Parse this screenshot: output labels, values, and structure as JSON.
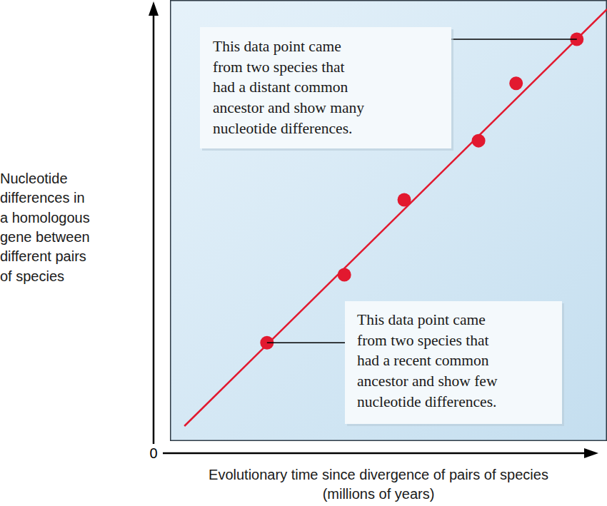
{
  "chart_data": {
    "type": "scatter",
    "x_label": "Evolutionary time since divergence of pairs of species\n(millions of years)",
    "y_label": "Nucleotide\ndifferences in\na homologous\ngene between\ndifferent pairs\nof species",
    "xlim": [
      0,
      100
    ],
    "ylim": [
      0,
      100
    ],
    "xticks": [],
    "yticks": [
      0
    ],
    "tick_labels": "y",
    "grid": false,
    "series": [
      {
        "type": "scatter",
        "color": "#e2192f",
        "marker": "circle",
        "x": [
          22.2,
          39.9,
          53.6,
          70.6,
          79.2,
          93.1
        ],
        "values": [
          22.3,
          37.7,
          54.7,
          68.1,
          81.1,
          91.1
        ]
      },
      {
        "type": "line",
        "color": "#e2192f",
        "line_style": "solid",
        "x": [
          3.3,
          100
        ],
        "values": [
          3.4,
          97.9
        ]
      }
    ],
    "annotations": [
      {
        "text": "This data point came\nfrom two species that\nhad a distant common\nancestor and show many\nnucleotide differences."
      },
      {
        "text": "This data point came\nfrom two species that\nhad a recent common\nancestor and show few\nnucleotide differences."
      }
    ]
  }
}
